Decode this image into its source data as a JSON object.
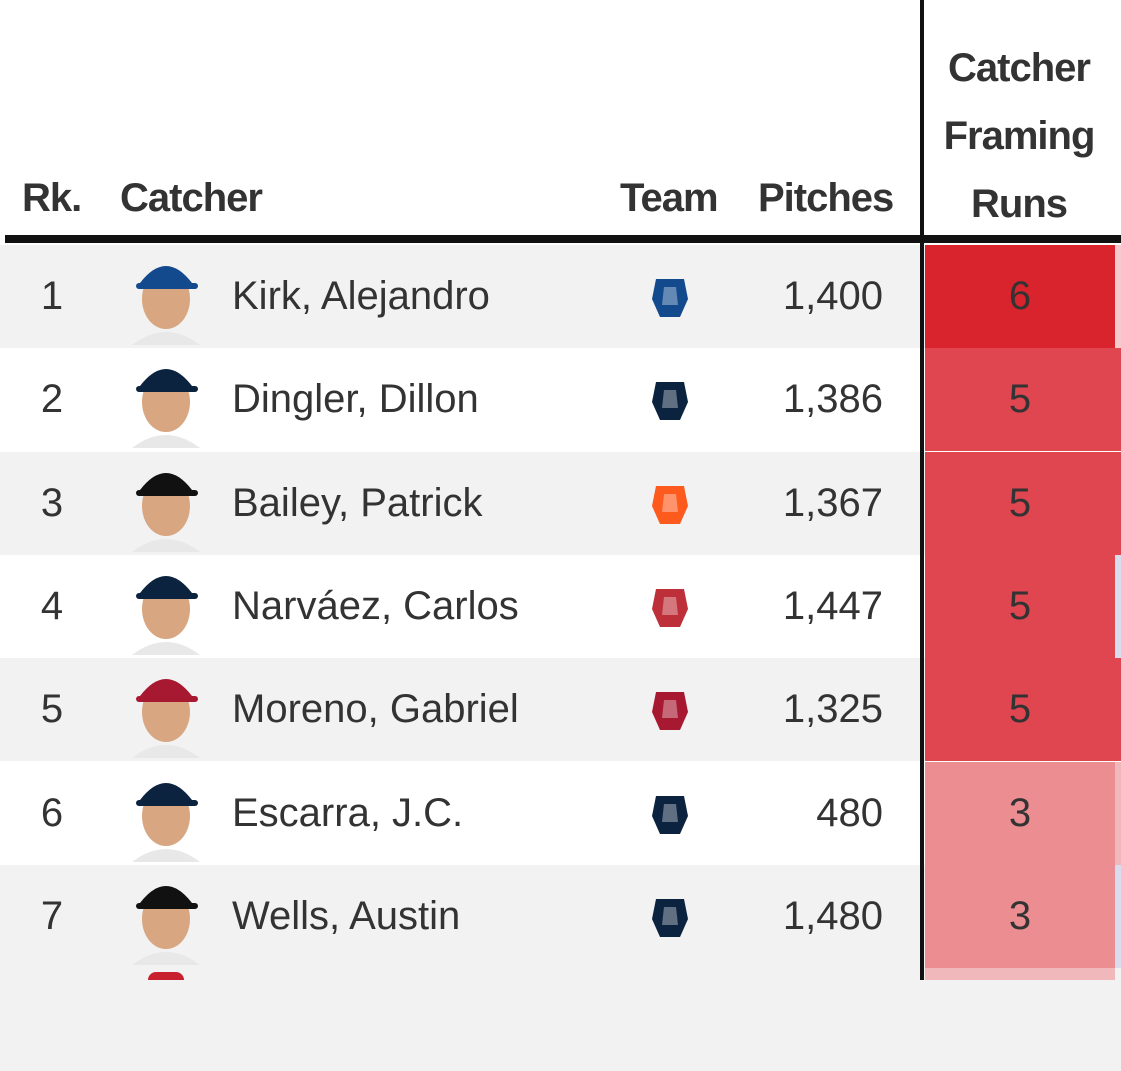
{
  "table": {
    "headers": {
      "rank": "Rk.",
      "catcher": "Catcher",
      "team": "Team",
      "pitches": "Pitches",
      "framing": "Catcher Framing Runs"
    },
    "rows": [
      {
        "rank": 1,
        "name": "Kirk, Alejandro",
        "pitches": "1,400",
        "framing": 6
      },
      {
        "rank": 2,
        "name": "Dingler, Dillon",
        "pitches": "1,386",
        "framing": 5
      },
      {
        "rank": 3,
        "name": "Bailey, Patrick",
        "pitches": "1,367",
        "framing": 5
      },
      {
        "rank": 4,
        "name": "Narváez, Carlos",
        "pitches": "1,447",
        "framing": 5
      },
      {
        "rank": 5,
        "name": "Moreno, Gabriel",
        "pitches": "1,325",
        "framing": 5
      },
      {
        "rank": 6,
        "name": "Escarra, J.C.",
        "pitches": "480",
        "framing": 3
      },
      {
        "rank": 7,
        "name": "Wells, Austin",
        "pitches": "1,480",
        "framing": 3
      }
    ]
  }
}
